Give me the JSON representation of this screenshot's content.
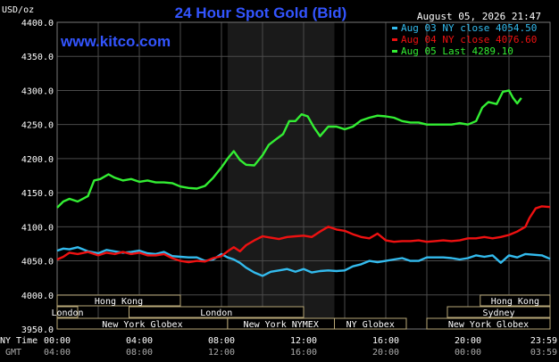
{
  "chart_data": {
    "type": "line",
    "title": "24 Hour Spot Gold (Bid)",
    "watermark": "www.kitco.com",
    "timestamp": "August 05, 2026 21:47",
    "ylabel": "USD/oz",
    "ylim": [
      3950,
      4400
    ],
    "yticks": [
      "4400.0",
      "4350.0",
      "4300.0",
      "4250.0",
      "4200.0",
      "4150.0",
      "4100.0",
      "4050.0",
      "4000.0",
      "3950.0"
    ],
    "xlabel_ny": "NY Time",
    "xlabel_gmt": "GMT",
    "xticks_ny": [
      "00:00",
      "04:00",
      "08:00",
      "12:00",
      "16:00",
      "20:00",
      "23:59"
    ],
    "xticks_gmt": [
      "04:00",
      "08:00",
      "12:00",
      "16:00",
      "20:00",
      "00:00",
      "03:59"
    ],
    "xlim": [
      0,
      24
    ],
    "grid": true,
    "shaded_range": [
      8.3,
      13.5
    ],
    "legend_position": "top-right",
    "colors": {
      "background": "#000000",
      "plot": "#000000",
      "shade": "#1a1a1a",
      "grid": "#4a4a4a",
      "title": "#3355ff",
      "watermark": "#3355ff",
      "text": "#ffffff",
      "session_bar": "#000000",
      "session_border": "#b8a878",
      "session_text": "#ffffff"
    },
    "series": [
      {
        "name": "Aug 03 NY close 4054.50",
        "color": "#33bbee",
        "x": [
          0,
          0.3,
          0.6,
          1.0,
          1.5,
          2.0,
          2.4,
          2.8,
          3.2,
          3.6,
          4.0,
          4.4,
          4.8,
          5.2,
          5.6,
          6.0,
          6.4,
          6.8,
          7.2,
          7.6,
          8.0,
          8.3,
          8.6,
          8.9,
          9.2,
          9.6,
          10.0,
          10.4,
          10.8,
          11.2,
          11.6,
          12.0,
          12.4,
          12.8,
          13.2,
          13.6,
          14.0,
          14.4,
          14.8,
          15.2,
          15.6,
          16.0,
          16.4,
          16.8,
          17.2,
          17.6,
          18.0,
          18.4,
          18.8,
          19.2,
          19.6,
          20.0,
          20.4,
          20.8,
          21.2,
          21.6,
          22.0,
          22.4,
          22.8,
          23.2,
          23.6,
          24.0
        ],
        "values": [
          4065,
          4068,
          4067,
          4070,
          4064,
          4061,
          4066,
          4064,
          4062,
          4063,
          4065,
          4061,
          4060,
          4063,
          4057,
          4056,
          4055,
          4055,
          4050,
          4052,
          4060,
          4055,
          4052,
          4047,
          4040,
          4033,
          4028,
          4034,
          4036,
          4038,
          4034,
          4038,
          4033,
          4035,
          4036,
          4035,
          4036,
          4042,
          4045,
          4050,
          4048,
          4050,
          4052,
          4054,
          4050,
          4050,
          4055,
          4055,
          4055,
          4054,
          4052,
          4054,
          4058,
          4056,
          4058,
          4047,
          4058,
          4055,
          4060,
          4059,
          4058,
          4053
        ]
      },
      {
        "name": "Aug 04 NY close 4076.60",
        "color": "#ee1111",
        "x": [
          0,
          0.3,
          0.6,
          1.0,
          1.5,
          2.0,
          2.4,
          2.8,
          3.2,
          3.6,
          4.0,
          4.4,
          4.8,
          5.2,
          5.6,
          6.0,
          6.4,
          6.8,
          7.2,
          7.6,
          8.0,
          8.3,
          8.6,
          8.9,
          9.2,
          9.6,
          10.0,
          10.4,
          10.8,
          11.2,
          11.6,
          12.0,
          12.4,
          12.8,
          13.2,
          13.6,
          14.0,
          14.4,
          14.8,
          15.2,
          15.6,
          16.0,
          16.4,
          16.8,
          17.2,
          17.6,
          18.0,
          18.4,
          18.8,
          19.2,
          19.6,
          20.0,
          20.4,
          20.8,
          21.2,
          21.6,
          22.0,
          22.4,
          22.8,
          23.0,
          23.3,
          23.6,
          24.0
        ],
        "values": [
          4052,
          4056,
          4062,
          4060,
          4063,
          4058,
          4062,
          4060,
          4063,
          4060,
          4062,
          4058,
          4058,
          4060,
          4054,
          4050,
          4048,
          4050,
          4049,
          4054,
          4057,
          4064,
          4070,
          4064,
          4073,
          4080,
          4086,
          4084,
          4082,
          4085,
          4086,
          4087,
          4085,
          4093,
          4100,
          4096,
          4094,
          4089,
          4085,
          4083,
          4090,
          4080,
          4078,
          4079,
          4079,
          4080,
          4078,
          4079,
          4080,
          4079,
          4080,
          4083,
          4083,
          4085,
          4083,
          4085,
          4088,
          4093,
          4100,
          4113,
          4127,
          4130,
          4129
        ]
      },
      {
        "name": "Aug 05 Last 4289.10",
        "color": "#33ee33",
        "x": [
          0,
          0.3,
          0.6,
          1.0,
          1.5,
          1.8,
          2.1,
          2.5,
          2.8,
          3.2,
          3.6,
          4.0,
          4.4,
          4.8,
          5.2,
          5.6,
          6.0,
          6.4,
          6.8,
          7.2,
          7.6,
          8.0,
          8.3,
          8.6,
          8.9,
          9.2,
          9.6,
          10.0,
          10.3,
          10.6,
          11.0,
          11.3,
          11.6,
          11.9,
          12.2,
          12.5,
          12.8,
          13.0,
          13.2,
          13.6,
          14.0,
          14.4,
          14.8,
          15.2,
          15.6,
          16.0,
          16.4,
          16.8,
          17.2,
          17.6,
          18.0,
          18.4,
          18.8,
          19.2,
          19.6,
          20.0,
          20.4,
          20.7,
          21.0,
          21.4,
          21.7,
          22.0,
          22.2,
          22.4,
          22.6
        ],
        "values": [
          4128,
          4137,
          4141,
          4137,
          4145,
          4168,
          4170,
          4177,
          4172,
          4168,
          4170,
          4166,
          4168,
          4165,
          4165,
          4164,
          4159,
          4157,
          4156,
          4160,
          4172,
          4187,
          4200,
          4211,
          4198,
          4191,
          4190,
          4205,
          4220,
          4227,
          4236,
          4255,
          4255,
          4265,
          4262,
          4246,
          4233,
          4240,
          4247,
          4247,
          4243,
          4247,
          4256,
          4260,
          4263,
          4262,
          4260,
          4255,
          4253,
          4253,
          4250,
          4250,
          4250,
          4250,
          4252,
          4250,
          4255,
          4275,
          4283,
          4280,
          4298,
          4300,
          4289,
          4281,
          4289
        ]
      }
    ],
    "sessions": [
      {
        "label": "Hong Kong",
        "row": 0,
        "start": 0,
        "end": 6.0
      },
      {
        "label": "Hong Kong",
        "row": 0,
        "start": 20.6,
        "end": 24.0
      },
      {
        "label": "London",
        "row": 1,
        "start": 0,
        "end": 1.0
      },
      {
        "label": "London",
        "row": 1,
        "start": 3.5,
        "end": 12.0
      },
      {
        "label": "Sydney",
        "row": 1,
        "start": 19.0,
        "end": 24.0
      },
      {
        "label": "New York Globex",
        "row": 2,
        "start": 0,
        "end": 8.3
      },
      {
        "label": "New York NYMEX",
        "row": 2,
        "start": 8.3,
        "end": 13.5
      },
      {
        "label": "NY Globex",
        "row": 2,
        "start": 13.5,
        "end": 17.0
      },
      {
        "label": "New York Globex",
        "row": 2,
        "start": 18.0,
        "end": 24.0
      }
    ]
  }
}
